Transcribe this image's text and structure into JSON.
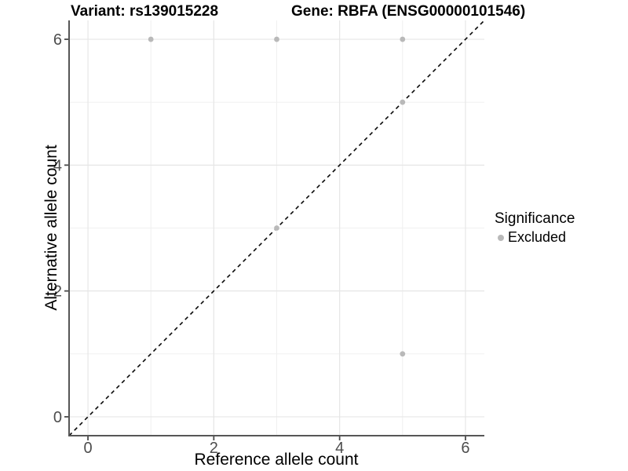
{
  "chart_data": {
    "type": "scatter",
    "titles": {
      "left": "Variant: rs139015228",
      "right": "Gene: RBFA (ENSG00000101546)"
    },
    "xlabel": "Reference allele count",
    "ylabel": "Alternative allele count",
    "xlim": [
      -0.3,
      6.3
    ],
    "ylim": [
      -0.3,
      6.3
    ],
    "x_ticks": [
      0,
      2,
      4,
      6
    ],
    "y_ticks": [
      0,
      2,
      4,
      6
    ],
    "x_minor_ticks": [
      1,
      3,
      5
    ],
    "y_minor_ticks": [
      1,
      3,
      5
    ],
    "grid": true,
    "identity_line": {
      "style": "dashed",
      "slope": 1,
      "intercept": 0
    },
    "series": [
      {
        "name": "Excluded",
        "color": "#b9b9b9",
        "points": [
          {
            "x": 1,
            "y": 6
          },
          {
            "x": 3,
            "y": 6
          },
          {
            "x": 5,
            "y": 6
          },
          {
            "x": 3,
            "y": 3
          },
          {
            "x": 5,
            "y": 5
          },
          {
            "x": 5,
            "y": 1
          }
        ]
      }
    ],
    "legend": {
      "position": "right",
      "title": "Significance",
      "items": [
        {
          "label": "Excluded",
          "color": "#b9b9b9"
        }
      ]
    }
  },
  "style": {
    "background": "#ffffff",
    "grid_major_color": "#e6e6e6",
    "grid_minor_color": "#f0f0f0",
    "axis_line_color": "#565656",
    "tick_mark_color": "#4a4a4a",
    "tick_label_color": "#4d4d4d",
    "dashed_line_color": "#0a0a0a",
    "title_color": "#000000"
  }
}
